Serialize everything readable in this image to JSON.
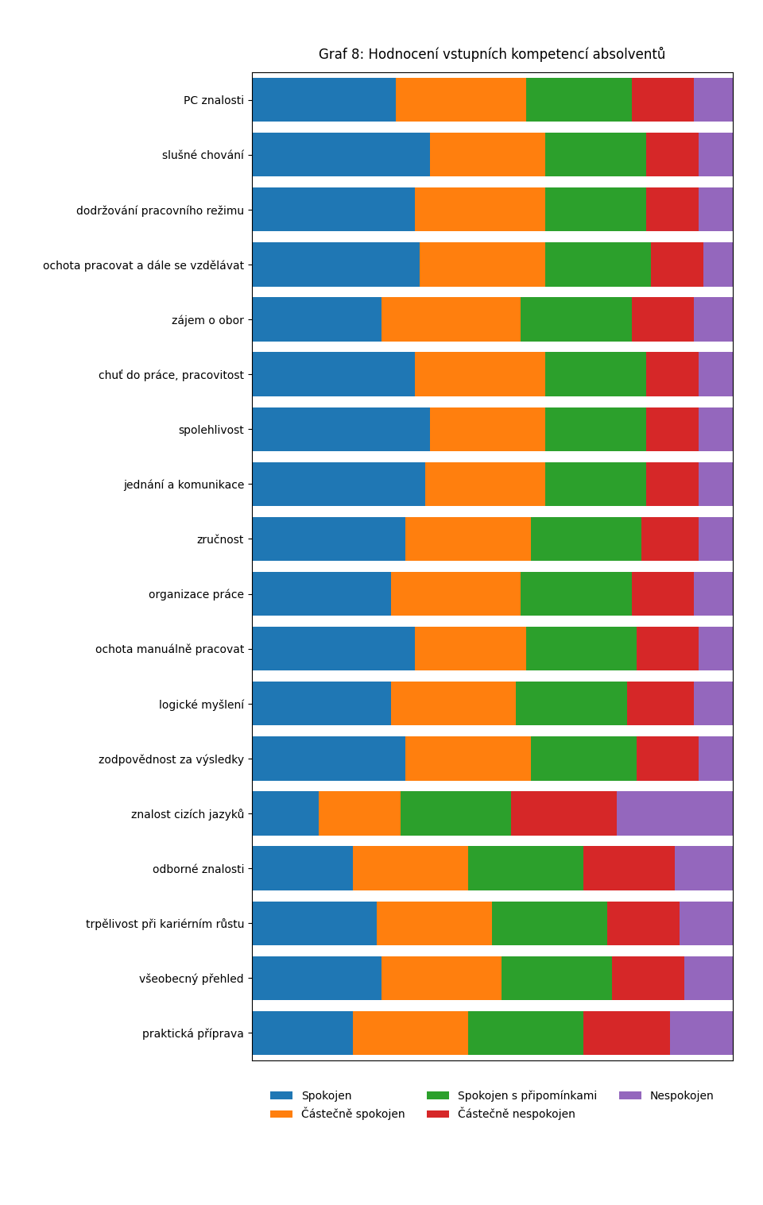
{
  "chart_data": {
    "type": "bar",
    "orientation": "horizontal",
    "stacked": true,
    "title": "Graf 8: Hodnocení vstupních kompetencí absolventů",
    "categories": [
      "PC znalosti",
      "slušné chování",
      "dodržování pracovního režimu",
      "ochota pracovat a dále se vzdělávat",
      "zájem o obor",
      "chuť do práce, pracovitost",
      "spolehlivost",
      "jednání a komunikace",
      "zručnost",
      "organizace práce",
      "ochota manuálně pracovat",
      "logické myšlení",
      "zodpovědnost za výsledky",
      "znalost cizích jazyků",
      "odborné znalosti",
      "trpělivost při kariérním růstu",
      "všeobecný přehled",
      "praktická příprava"
    ],
    "series": [
      {
        "name": "Spokojen",
        "values": [
          30,
          37,
          34,
          35,
          27,
          34,
          37,
          36,
          32,
          29,
          34,
          29,
          32,
          14,
          21,
          26,
          27,
          21
        ]
      },
      {
        "name": "Částečně spokojen",
        "values": [
          27,
          24,
          27,
          26,
          29,
          27,
          24,
          25,
          26,
          27,
          23,
          26,
          26,
          17,
          24,
          24,
          25,
          24
        ]
      },
      {
        "name": "Spokojen s připomínkami",
        "values": [
          22,
          21,
          21,
          22,
          23,
          21,
          21,
          21,
          23,
          23,
          23,
          23,
          22,
          23,
          24,
          24,
          23,
          24
        ]
      },
      {
        "name": "Částečně nespokojen",
        "values": [
          13,
          11,
          11,
          11,
          13,
          11,
          11,
          11,
          12,
          13,
          13,
          14,
          13,
          22,
          19,
          15,
          15,
          18
        ]
      },
      {
        "name": "Nespokojen",
        "values": [
          8,
          7,
          7,
          6,
          8,
          7,
          7,
          7,
          7,
          8,
          7,
          8,
          7,
          24,
          12,
          11,
          10,
          13
        ]
      }
    ],
    "xlim": [
      0,
      100
    ],
    "tick_labels": "y",
    "legend": "upper center"
  }
}
